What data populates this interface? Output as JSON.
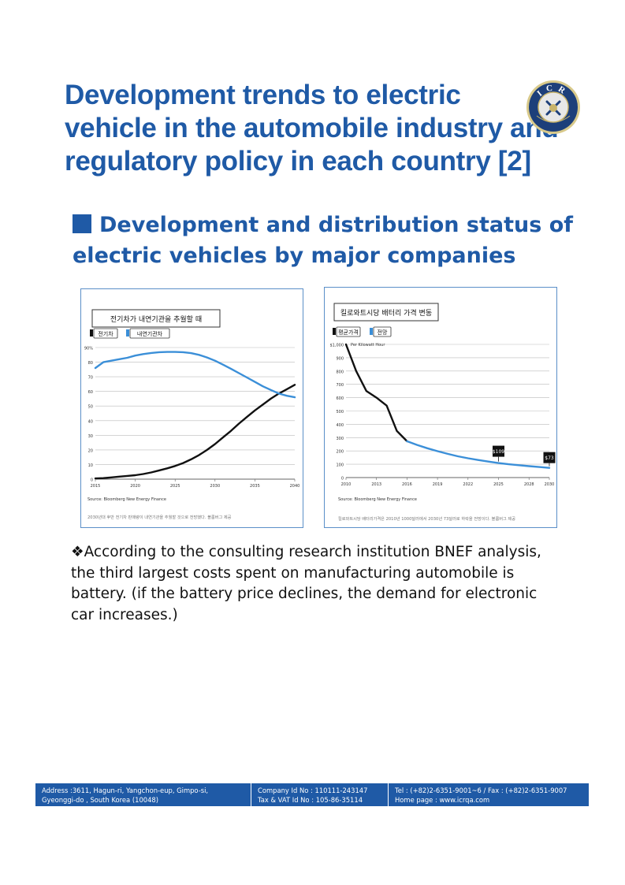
{
  "header": {
    "title_lines": [
      "Development trends to electric",
      "vehicle in the automobile industry and",
      "regulatory policy in each country [2]"
    ],
    "logo_text": "ICR"
  },
  "section": {
    "heading_lines": [
      "Development and distribution status of",
      "electric vehicles by major companies"
    ]
  },
  "note_lines": [
    "❖According to the consulting research institution BNEF analysis,",
    "the third largest costs spent on manufacturing automobile is",
    "battery. (if the battery price declines, the demand for electronic",
    "car increases.)"
  ],
  "colors": {
    "brand_blue": "#1f5aa6",
    "line_blue": "#3b8fd8",
    "line_black": "#111111"
  },
  "chart_data": [
    {
      "type": "line",
      "title": "전기차가 내연기관을 추월할 때",
      "legend": [
        "전기차",
        "내연기관차"
      ],
      "xticks": [
        "2015",
        "2020",
        "2025",
        "2030",
        "2035",
        "2040"
      ],
      "yticks": [
        "0",
        "10",
        "20",
        "30",
        "40",
        "50",
        "60",
        "70",
        "80",
        "90%"
      ],
      "xlim": [
        2015,
        2040
      ],
      "ylim": [
        0,
        90
      ],
      "source": "Source: Bloomberg New Energy Finance",
      "caption": "2030년대 후반 전기차 판매량이 내연기관을 추월할 것으로 전망했다. 블룸버그 제공",
      "series": [
        {
          "name": "전기차",
          "color": "#111111",
          "x": [
            2015,
            2016,
            2017,
            2018,
            2019,
            2020,
            2021,
            2022,
            2023,
            2024,
            2025,
            2026,
            2027,
            2028,
            2029,
            2030,
            2031,
            2032,
            2033,
            2034,
            2035,
            2036,
            2037,
            2038,
            2039,
            2040
          ],
          "y": [
            0.5,
            0.7,
            1.2,
            1.7,
            2.2,
            2.7,
            3.5,
            4.6,
            6,
            7.4,
            9,
            11,
            13.5,
            16.5,
            20,
            24,
            28.5,
            33,
            38,
            42.5,
            47,
            51,
            55,
            58.5,
            61.5,
            64.5
          ]
        },
        {
          "name": "내연기관차",
          "color": "#3b8fd8",
          "x": [
            2015,
            2016,
            2017,
            2018,
            2019,
            2020,
            2021,
            2022,
            2023,
            2024,
            2025,
            2026,
            2027,
            2028,
            2029,
            2030,
            2031,
            2032,
            2033,
            2034,
            2035,
            2036,
            2037,
            2038,
            2039,
            2040
          ],
          "y": [
            76,
            80,
            81,
            82,
            83,
            84.5,
            85.5,
            86.3,
            86.8,
            87,
            87,
            86.8,
            86.2,
            85,
            83.2,
            81,
            78.3,
            75.5,
            72.5,
            69.5,
            66.5,
            63.5,
            61,
            58.5,
            57,
            56
          ]
        }
      ]
    },
    {
      "type": "line",
      "title": "킬로와트시당 배터리 가격 변동",
      "legend": [
        "평균가격",
        "전망"
      ],
      "xticks": [
        "2010",
        "2013",
        "2016",
        "2019",
        "2022",
        "2025",
        "2028",
        "2030"
      ],
      "yticks": [
        "0",
        "100",
        "200",
        "300",
        "400",
        "500",
        "600",
        "700",
        "800",
        "900",
        "$1,000"
      ],
      "ylabel": "Per Kilowatt Hour",
      "xlim": [
        2010,
        2030
      ],
      "ylim": [
        0,
        1000
      ],
      "source": "Source: Bloomberg New Energy Finance",
      "caption": "킬로와트시당 배터리가격은 2010년 1000달러에서 2030년 73달러로 하락을 전망이다. 블룸버그 제공",
      "annotations": [
        "$109",
        "$73"
      ],
      "series": [
        {
          "name": "평균가격",
          "color": "#111111",
          "x": [
            2010,
            2011,
            2012,
            2013,
            2014,
            2015,
            2016
          ],
          "y": [
            1000,
            800,
            650,
            600,
            540,
            350,
            273
          ]
        },
        {
          "name": "전망",
          "color": "#3b8fd8",
          "x": [
            2016,
            2017,
            2018,
            2019,
            2020,
            2021,
            2022,
            2023,
            2024,
            2025,
            2026,
            2027,
            2028,
            2029,
            2030
          ],
          "y": [
            273,
            245,
            220,
            198,
            178,
            160,
            145,
            132,
            120,
            109,
            100,
            93,
            86,
            79,
            73
          ]
        }
      ]
    }
  ],
  "footer": {
    "address_lines": [
      "Address :3611, Hagun-ri, Yangchon-eup, Gimpo-si,",
      "Gyeonggi-do , South Korea (10048)"
    ],
    "company_lines": [
      "Company Id No : 110111-243147",
      "Tax & VAT Id No : 105-86-35114"
    ],
    "contact_lines": [
      "Tel : (+82)2-6351-9001~6 / Fax : (+82)2-6351-9007",
      "Home page : www.icrqa.com"
    ]
  }
}
